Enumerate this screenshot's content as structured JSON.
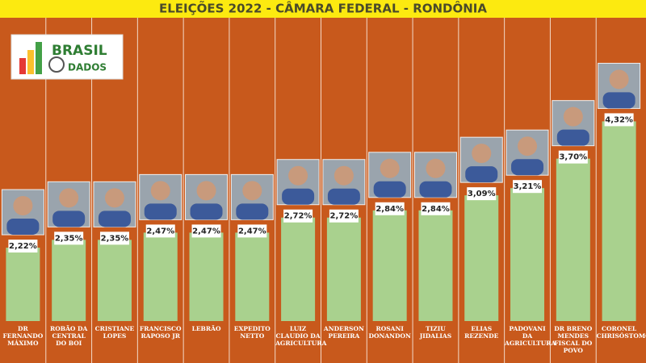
{
  "chart_data": {
    "type": "bar",
    "title": "ELEIÇÕES 2022 - CÂMARA FEDERAL - RONDÔNIA",
    "categories": [
      "DR FERNANDO MÁXIMO",
      "ROBÃO DA CENTRAL DO BOI",
      "CRISTIANE LOPES",
      "FRANCISCO RAPOSO JR",
      "LEBRÃO",
      "EXPEDITO NETTO",
      "LUIZ CLAUDIO DA AGRICULTURA",
      "ANDERSON PEREIRA",
      "ROSANI DONANDON",
      "TIZIU JIDALIAS",
      "ELIAS REZENDE",
      "PADOVANI DA AGRICULTURA",
      "DR BRENO MENDES FISCAL DO POVO",
      "CORONEL CHRISÓSTOMO"
    ],
    "values": [
      2.22,
      2.35,
      2.35,
      2.47,
      2.47,
      2.47,
      2.72,
      2.72,
      2.84,
      2.84,
      3.09,
      3.21,
      3.7,
      4.32
    ],
    "value_labels": [
      "2,22%",
      "2,35%",
      "2,35%",
      "2,47%",
      "2,47%",
      "2,47%",
      "2,72%",
      "2,72%",
      "2,84%",
      "2,84%",
      "3,09%",
      "3,21%",
      "3,70%",
      "4,32%"
    ],
    "color": "#a9d18e",
    "ylim": [
      1,
      4.5
    ]
  },
  "logo": {
    "line1": "BRASIL",
    "line2": "DADOS"
  }
}
